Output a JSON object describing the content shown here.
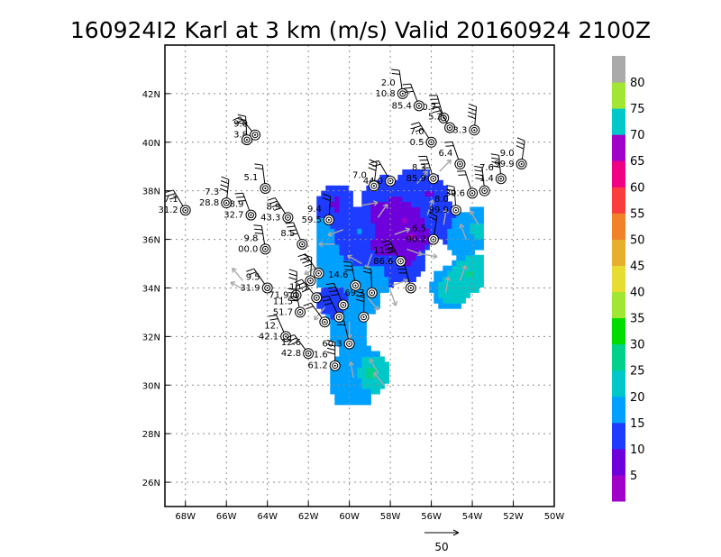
{
  "chart_data": {
    "type": "heatmap",
    "title": "160924I2 Karl at 3 km (m/s) Valid 20160924 2100Z",
    "xlim": [
      -69,
      -50
    ],
    "ylim": [
      25,
      44
    ],
    "x_ticks": [
      {
        "lon": -68,
        "label": "68W"
      },
      {
        "lon": -66,
        "label": "66W"
      },
      {
        "lon": -64,
        "label": "64W"
      },
      {
        "lon": -62,
        "label": "62W"
      },
      {
        "lon": -60,
        "label": "60W"
      },
      {
        "lon": -58,
        "label": "58W"
      },
      {
        "lon": -56,
        "label": "56W"
      },
      {
        "lon": -54,
        "label": "54W"
      },
      {
        "lon": -52,
        "label": "52W"
      },
      {
        "lon": -50,
        "label": "50W"
      }
    ],
    "y_ticks": [
      {
        "lat": 26,
        "label": "26N"
      },
      {
        "lat": 28,
        "label": "28N"
      },
      {
        "lat": 30,
        "label": "30N"
      },
      {
        "lat": 32,
        "label": "32N"
      },
      {
        "lat": 34,
        "label": "34N"
      },
      {
        "lat": 36,
        "label": "36N"
      },
      {
        "lat": 38,
        "label": "38N"
      },
      {
        "lat": 40,
        "label": "40N"
      },
      {
        "lat": 42,
        "label": "42N"
      }
    ],
    "grid": true,
    "colorbar": {
      "units": "m/s",
      "levels": [
        0,
        5,
        10,
        15,
        20,
        25,
        30,
        35,
        40,
        45,
        50,
        55,
        60,
        65,
        70,
        75,
        80,
        85
      ],
      "colors": [
        "#a000c8",
        "#6e00dc",
        "#1e3cff",
        "#00a0ff",
        "#00c8c8",
        "#00d28c",
        "#00dc00",
        "#a0e632",
        "#e6dc32",
        "#e6af2d",
        "#f08228",
        "#fa3c3c",
        "#f00082",
        "#a000c8",
        "#00c8c8",
        "#a0e632",
        "#aaaaaa"
      ],
      "labels": [
        "5",
        "10",
        "15",
        "20",
        "25",
        "30",
        "35",
        "40",
        "45",
        "50",
        "55",
        "60",
        "65",
        "70",
        "75",
        "80"
      ]
    },
    "wind_field": [
      {
        "lon": -60.8,
        "lat": 37.3,
        "speed": 8
      },
      {
        "lon": -58.5,
        "lat": 37.0,
        "speed": 4
      },
      {
        "lon": -57.5,
        "lat": 36.6,
        "speed": 3
      },
      {
        "lon": -57.0,
        "lat": 36.0,
        "speed": 2
      },
      {
        "lon": -58.6,
        "lat": 35.6,
        "speed": 5
      },
      {
        "lon": -56.3,
        "lat": 37.8,
        "speed": 9
      },
      {
        "lon": -55.8,
        "lat": 36.8,
        "speed": 12
      },
      {
        "lon": -56.9,
        "lat": 38.0,
        "speed": 13
      },
      {
        "lon": -60.4,
        "lat": 35.6,
        "speed": 14
      },
      {
        "lon": -59.6,
        "lat": 36.3,
        "speed": 16
      },
      {
        "lon": -61.1,
        "lat": 34.6,
        "speed": 17
      },
      {
        "lon": -60.1,
        "lat": 34.6,
        "speed": 16
      },
      {
        "lon": -59.5,
        "lat": 33.6,
        "speed": 18
      },
      {
        "lon": -60.7,
        "lat": 33.4,
        "speed": 12
      },
      {
        "lon": -60.2,
        "lat": 32.2,
        "speed": 16
      },
      {
        "lon": -58.8,
        "lat": 34.5,
        "speed": 20
      },
      {
        "lon": -54.6,
        "lat": 36.1,
        "speed": 20
      },
      {
        "lon": -53.9,
        "lat": 36.3,
        "speed": 22
      },
      {
        "lon": -55.2,
        "lat": 33.9,
        "speed": 24
      },
      {
        "lon": -54.3,
        "lat": 34.5,
        "speed": 27
      },
      {
        "lon": -59.1,
        "lat": 30.4,
        "speed": 29
      },
      {
        "lon": -59.8,
        "lat": 30.9,
        "speed": 19
      },
      {
        "lon": -60.0,
        "lat": 29.6,
        "speed": 15
      },
      {
        "lon": -60.2,
        "lat": 30.2,
        "speed": 18
      },
      {
        "lon": -58.5,
        "lat": 37.6,
        "speed": 11
      },
      {
        "lon": -57.4,
        "lat": 35.0,
        "speed": 8
      },
      {
        "lon": -61.4,
        "lat": 36.5,
        "speed": 18
      },
      {
        "lon": -61.0,
        "lat": 35.4,
        "speed": 17
      }
    ],
    "stations": [
      {
        "lon": -64.6,
        "lat": 40.3,
        "line1": "9.0",
        "line2": "3.8"
      },
      {
        "lon": -65.0,
        "lat": 40.1,
        "line1": "",
        "line2": ""
      },
      {
        "lon": -55.4,
        "lat": 41.0,
        "line1": "0.7",
        "line2": ""
      },
      {
        "lon": -55.1,
        "lat": 40.6,
        "line1": "5.2",
        "line2": ""
      },
      {
        "lon": -51.6,
        "lat": 39.1,
        "line1": "9.0",
        "line2": "99.9"
      },
      {
        "lon": -52.6,
        "lat": 38.5,
        "line1": "7.6",
        "line2": "1.4"
      },
      {
        "lon": -54.0,
        "lat": 37.9,
        "line1": "",
        "line2": "39.6"
      },
      {
        "lon": -68.0,
        "lat": 37.2,
        "line1": "7.1",
        "line2": "31.2"
      },
      {
        "lon": -66.0,
        "lat": 37.5,
        "line1": "7.3",
        "line2": "28.8"
      },
      {
        "lon": -64.1,
        "lat": 38.1,
        "line1": "5.1",
        "line2": ""
      },
      {
        "lon": -64.8,
        "lat": 37.0,
        "line1": "8.9",
        "line2": "32.7"
      },
      {
        "lon": -63.0,
        "lat": 36.9,
        "line1": "8.9",
        "line2": "43.3"
      },
      {
        "lon": -61.0,
        "lat": 36.8,
        "line1": "9.4",
        "line2": "59.5"
      },
      {
        "lon": -64.1,
        "lat": 35.6,
        "line1": "9.8",
        "line2": "00.0"
      },
      {
        "lon": -62.3,
        "lat": 35.8,
        "line1": "8.5",
        "line2": ""
      },
      {
        "lon": -64.0,
        "lat": 34.0,
        "line1": "9.5",
        "line2": "31.9"
      },
      {
        "lon": -62.6,
        "lat": 33.7,
        "line1": "",
        "line2": "71.9"
      },
      {
        "lon": -62.4,
        "lat": 33.0,
        "line1": "11.5",
        "line2": "51.7"
      },
      {
        "lon": -63.1,
        "lat": 32.0,
        "line1": "12.",
        "line2": "42.1"
      },
      {
        "lon": -62.0,
        "lat": 31.3,
        "line1": "12.6",
        "line2": "42.8"
      },
      {
        "lon": -60.7,
        "lat": 30.8,
        "line1": "1.6",
        "line2": "61.2"
      },
      {
        "lon": -60.0,
        "lat": 31.7,
        "line1": "",
        "line2": "60.3"
      },
      {
        "lon": -60.5,
        "lat": 32.8,
        "line1": "",
        "line2": ""
      },
      {
        "lon": -61.6,
        "lat": 33.6,
        "line1": "10.1",
        "line2": ""
      },
      {
        "lon": -58.9,
        "lat": 33.8,
        "line1": "",
        "line2": "69.3"
      },
      {
        "lon": -57.0,
        "lat": 34.0,
        "line1": "",
        "line2": ""
      },
      {
        "lon": -57.5,
        "lat": 35.1,
        "line1": "11.9",
        "line2": "86.6"
      },
      {
        "lon": -55.9,
        "lat": 36.0,
        "line1": "6.5",
        "line2": "90.2"
      },
      {
        "lon": -54.8,
        "lat": 37.2,
        "line1": "8.0",
        "line2": "99.9"
      },
      {
        "lon": -55.9,
        "lat": 38.5,
        "line1": "8.3",
        "line2": "85.9"
      },
      {
        "lon": -58.0,
        "lat": 38.4,
        "line1": "",
        "line2": "44.0"
      },
      {
        "lon": -58.8,
        "lat": 38.2,
        "line1": "7.0",
        "line2": ""
      },
      {
        "lon": -53.4,
        "lat": 38.0,
        "line1": "",
        "line2": ""
      },
      {
        "lon": -54.6,
        "lat": 39.1,
        "line1": "6.4",
        "line2": ""
      },
      {
        "lon": -56.0,
        "lat": 40.0,
        "line1": "7.0",
        "line2": "0.5"
      },
      {
        "lon": -53.9,
        "lat": 40.5,
        "line1": "",
        "line2": "3.3"
      },
      {
        "lon": -57.4,
        "lat": 42.0,
        "line1": "2.0",
        "line2": "10.8"
      },
      {
        "lon": -56.6,
        "lat": 41.5,
        "line1": "",
        "line2": "85.4"
      },
      {
        "lon": -61.5,
        "lat": 34.6,
        "line1": "",
        "line2": ""
      },
      {
        "lon": -61.9,
        "lat": 34.3,
        "line1": "",
        "line2": ""
      },
      {
        "lon": -59.7,
        "lat": 34.1,
        "line1": "14.6",
        "line2": ""
      },
      {
        "lon": -60.3,
        "lat": 33.3,
        "line1": "",
        "line2": ""
      },
      {
        "lon": -61.2,
        "lat": 32.6,
        "line1": "",
        "line2": ""
      },
      {
        "lon": -59.3,
        "lat": 32.8,
        "line1": "",
        "line2": ""
      }
    ],
    "scale_arrow": {
      "speed": 50,
      "label": "50"
    }
  }
}
